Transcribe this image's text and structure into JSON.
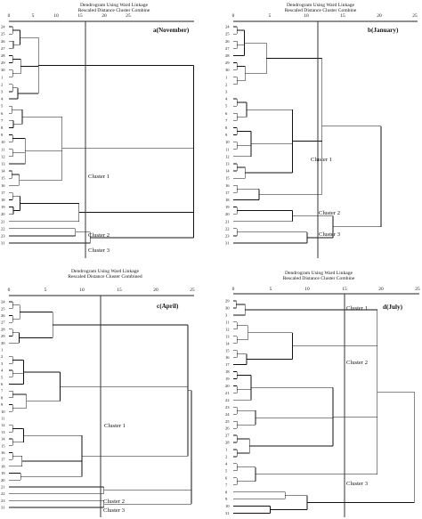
{
  "panels": [
    {
      "id": "a",
      "title": "Dendrogram Using Ward Linkage",
      "subtitle": "Rescaled Distance Cluster Combine",
      "label": "a(November)",
      "ticks": [
        "0",
        "5",
        "10",
        "15",
        "20",
        "25"
      ],
      "cluster_labels": [
        "Cluster 1",
        "Cluster 2",
        "Cluster 3"
      ],
      "leaves": [
        "24",
        "25",
        "26",
        "27",
        "28",
        "29",
        "30",
        "1",
        "2",
        "3",
        "4",
        "5",
        "6",
        "7",
        "8",
        "9",
        "10",
        "11",
        "12",
        "13",
        "14",
        "15",
        "16",
        "17",
        "18",
        "19",
        "20",
        "21",
        "22",
        "23",
        "31"
      ]
    },
    {
      "id": "b",
      "title": "Dendrogram Using Ward Linkage",
      "subtitle": "Rescaled Distance Cluster Combine",
      "label": "b(January)",
      "ticks": [
        "0",
        "5",
        "10",
        "15",
        "20",
        "25"
      ],
      "cluster_labels": [
        "Cluster 1",
        "Cluster 2",
        "Cluster 3"
      ],
      "leaves": [
        "24",
        "25",
        "26",
        "27",
        "28",
        "29",
        "30",
        "1",
        "2",
        "3",
        "4",
        "5",
        "6",
        "7",
        "8",
        "9",
        "10",
        "11",
        "12",
        "13",
        "14",
        "15",
        "16",
        "17",
        "18",
        "19",
        "20",
        "21",
        "22",
        "23",
        "31"
      ]
    },
    {
      "id": "c",
      "title": "Dendrogram Using Ward Linkage",
      "subtitle": "Rescaled Distance Cluster Combined",
      "label": "c(April)",
      "ticks": [
        "0",
        "5",
        "10",
        "15",
        "20",
        "25"
      ],
      "cluster_labels": [
        "Cluster 1",
        "Cluster 2",
        "Cluster 3"
      ],
      "leaves": [
        "24",
        "25",
        "26",
        "27",
        "28",
        "29",
        "30",
        "1",
        "2",
        "3",
        "4",
        "5",
        "6",
        "7",
        "8",
        "9",
        "10",
        "11",
        "12",
        "13",
        "14",
        "15",
        "16",
        "17",
        "18",
        "19",
        "20",
        "21",
        "22",
        "23",
        "31"
      ]
    },
    {
      "id": "d",
      "title": "Dendrogram Using Ward Linkage",
      "subtitle": "Rescaled Distance Cluster Combine",
      "label": "d(July)",
      "ticks": [
        "0",
        "5",
        "10",
        "15",
        "20",
        "25"
      ],
      "cluster_labels": [
        "Cluster 1",
        "Cluster 2",
        "Cluster 3"
      ],
      "leaves": [
        "29",
        "30",
        "3",
        "11",
        "12",
        "13",
        "14",
        "15",
        "16",
        "17",
        "18",
        "19",
        "20",
        "21",
        "22",
        "23",
        "24",
        "25",
        "26",
        "27",
        "28",
        "1",
        "2",
        "4",
        "5",
        "6",
        "7",
        "8",
        "9",
        "10",
        "31"
      ]
    }
  ],
  "chart_data": [
    {
      "type": "dendrogram",
      "title": "Dendrogram Using Ward Linkage",
      "subtitle": "Rescaled Distance Cluster Combine",
      "label": "a(November)",
      "x_range": [
        0,
        25
      ],
      "clusters": 3
    },
    {
      "type": "dendrogram",
      "title": "Dendrogram Using Ward Linkage",
      "subtitle": "Rescaled Distance Cluster Combine",
      "label": "b(January)",
      "x_range": [
        0,
        25
      ],
      "clusters": 3
    },
    {
      "type": "dendrogram",
      "title": "Dendrogram Using Ward Linkage",
      "subtitle": "Rescaled Distance Cluster Combined",
      "label": "c(April)",
      "x_range": [
        0,
        25
      ],
      "clusters": 3
    },
    {
      "type": "dendrogram",
      "title": "Dendrogram Using Ward Linkage",
      "subtitle": "Rescaled Distance Cluster Combine",
      "label": "d(July)",
      "x_range": [
        0,
        25
      ],
      "clusters": 3
    }
  ]
}
